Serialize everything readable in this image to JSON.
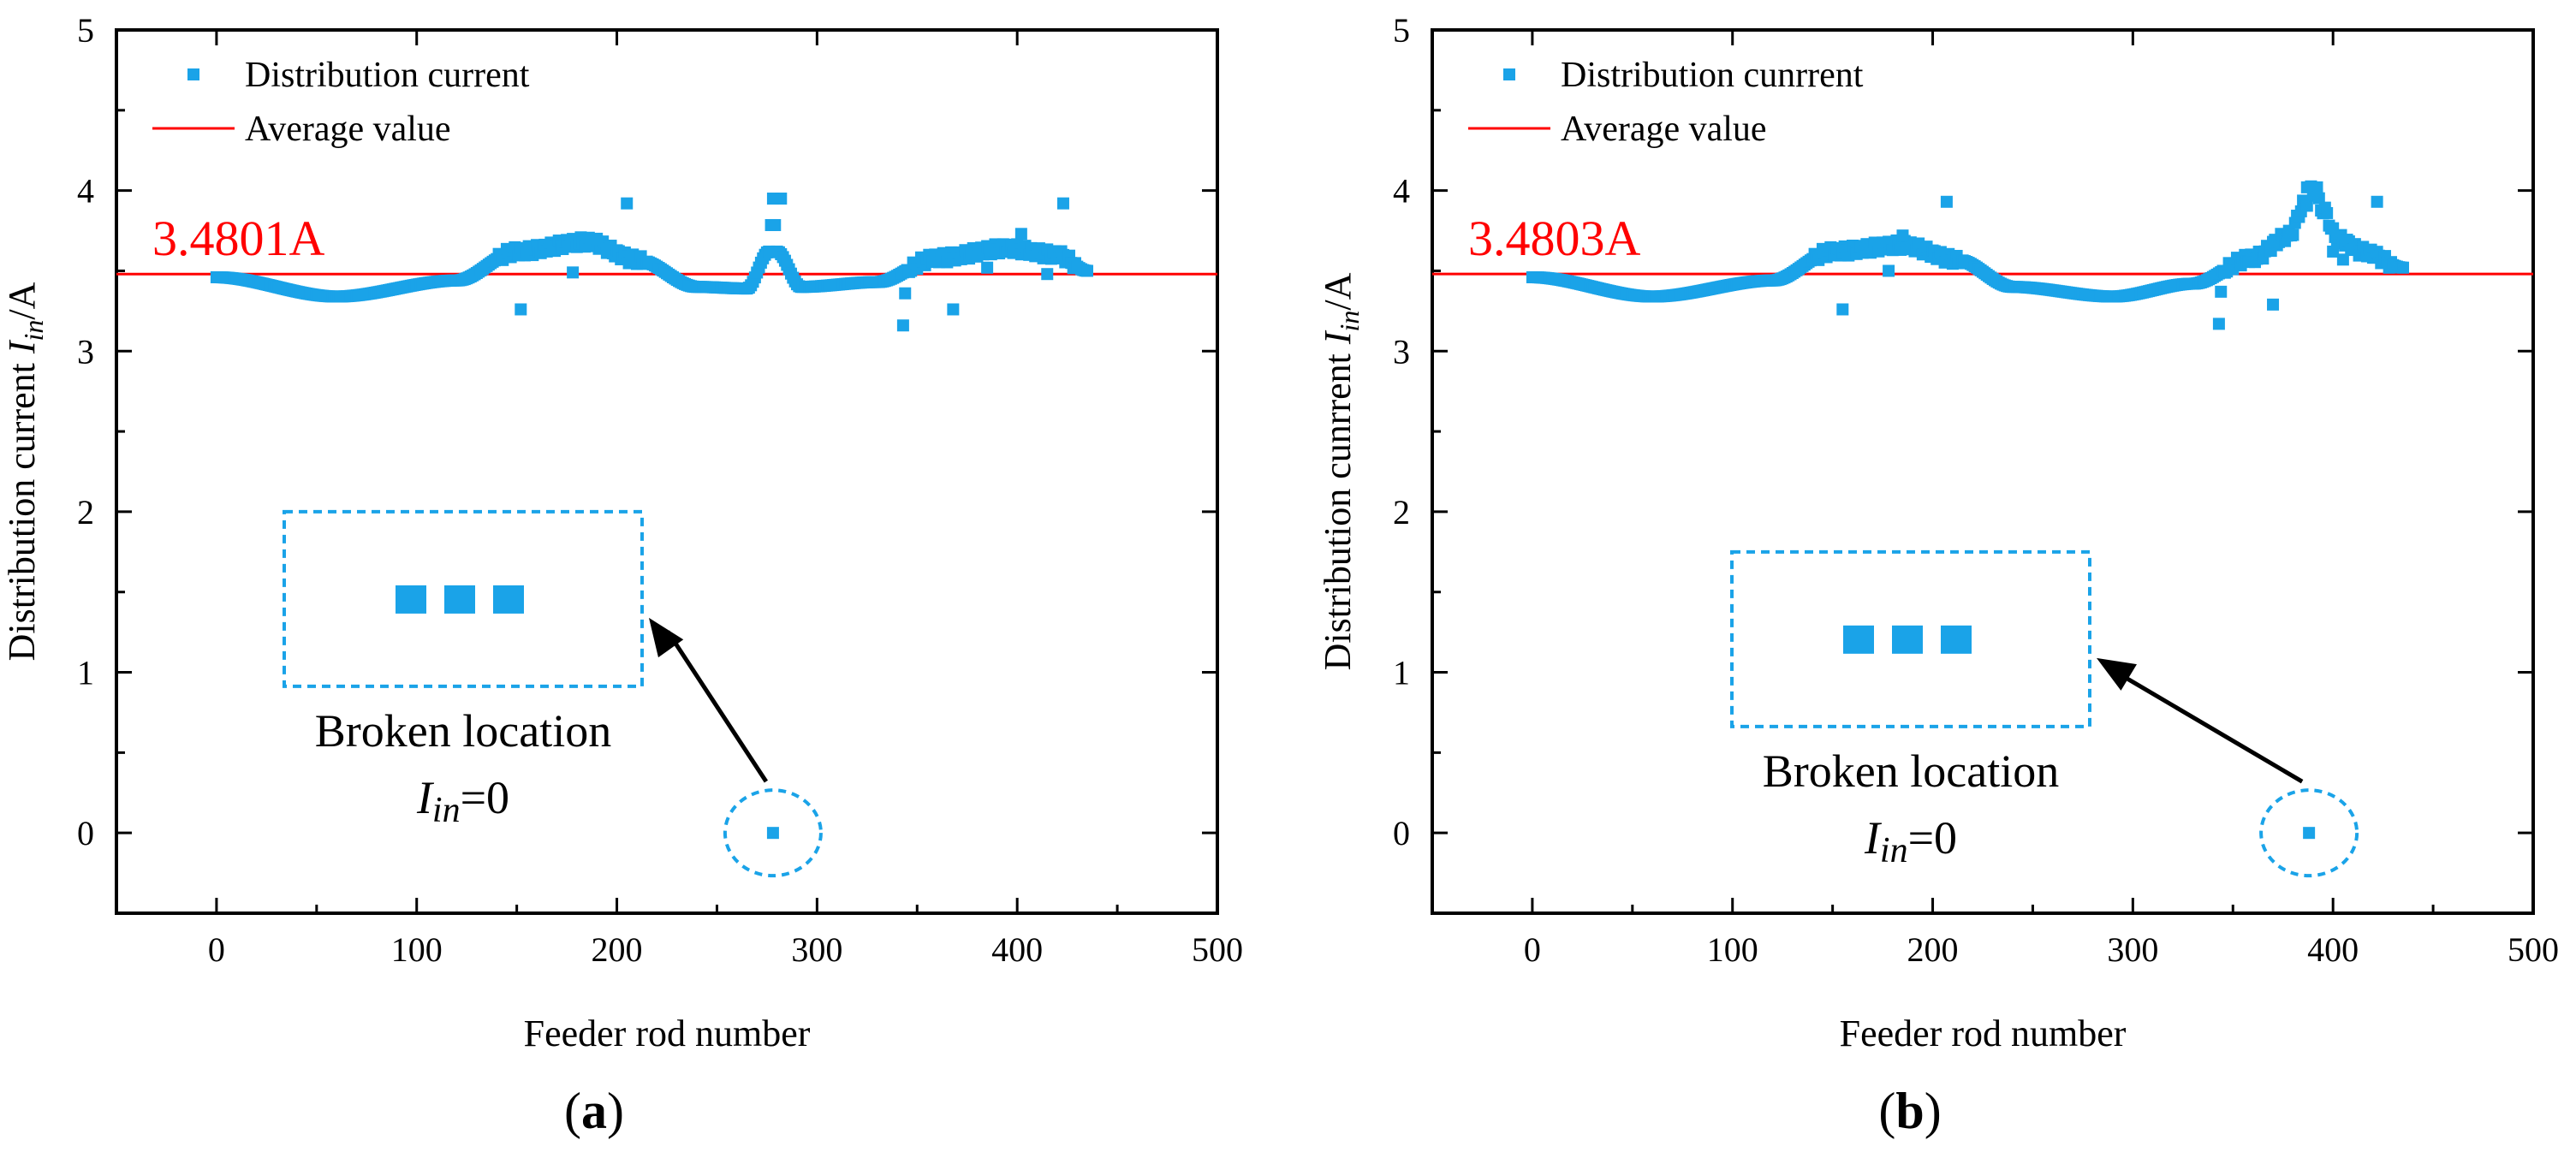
{
  "chart_data": [
    {
      "id": "a",
      "type": "scatter",
      "panel_label": "a",
      "xlabel": "Feeder rod number",
      "ylabel_prefix": "Distribution current ",
      "ylabel_var": "I",
      "ylabel_sub": "in",
      "ylabel_suffix": "/A",
      "xlim": [
        -50,
        500
      ],
      "ylim": [
        -0.5,
        5
      ],
      "xticks": [
        0,
        100,
        200,
        300,
        400,
        500
      ],
      "xtick_labels": [
        "0",
        "100",
        "200",
        "300",
        "400",
        "500"
      ],
      "yticks": [
        0,
        1,
        2,
        3,
        4,
        5
      ],
      "ytick_labels": [
        "0",
        "1",
        "2",
        "3",
        "4",
        "5"
      ],
      "legend": {
        "series_label": "Distribution current",
        "average_label": "Average value",
        "placement": "top-left"
      },
      "average_value": 3.4801,
      "average_label": "3.4801A",
      "broken_location": {
        "x": 278,
        "y": 0
      },
      "broken_text": "Broken location",
      "broken_expr_var": "I",
      "broken_expr_sub": "in",
      "broken_expr_val": "=0",
      "series_color": "#1aa3e8",
      "average_color": "#ff0000",
      "series": [
        {
          "name": "Distribution current",
          "profile": "bowl_then_hump",
          "anchors": [
            [
              0,
              3.46
            ],
            [
              60,
              3.34
            ],
            [
              120,
              3.44
            ],
            [
              150,
              3.62
            ],
            [
              185,
              3.68
            ],
            [
              210,
              3.57
            ],
            [
              240,
              3.4
            ],
            [
              265,
              3.39
            ],
            [
              276,
              3.62
            ],
            [
              278,
              3.95
            ],
            [
              280,
              3.62
            ],
            [
              292,
              3.4
            ],
            [
              330,
              3.43
            ],
            [
              360,
              3.58
            ],
            [
              395,
              3.64
            ],
            [
              420,
              3.6
            ],
            [
              435,
              3.5
            ]
          ]
        }
      ],
      "outliers": [
        {
          "x": 152,
          "y": 3.26
        },
        {
          "x": 178,
          "y": 3.49
        },
        {
          "x": 190,
          "y": 3.7
        },
        {
          "x": 205,
          "y": 3.92
        },
        {
          "x": 278,
          "y": 3.95
        },
        {
          "x": 282,
          "y": 3.95
        },
        {
          "x": 343,
          "y": 3.16
        },
        {
          "x": 344,
          "y": 3.36
        },
        {
          "x": 368,
          "y": 3.26
        },
        {
          "x": 402,
          "y": 3.73
        },
        {
          "x": 423,
          "y": 3.92
        },
        {
          "x": 415,
          "y": 3.48
        },
        {
          "x": 385,
          "y": 3.52
        }
      ]
    },
    {
      "id": "b",
      "type": "scatter",
      "panel_label": "b",
      "xlabel": "Feeder rod number",
      "ylabel_prefix": "Distribution cunrrent ",
      "ylabel_var": "I",
      "ylabel_sub": "in",
      "ylabel_suffix": "/A",
      "xlim": [
        -50,
        500
      ],
      "ylim": [
        -0.5,
        5
      ],
      "xticks": [
        0,
        100,
        200,
        300,
        400,
        500
      ],
      "xtick_labels": [
        "0",
        "100",
        "200",
        "300",
        "400",
        "500"
      ],
      "yticks": [
        0,
        1,
        2,
        3,
        4,
        5
      ],
      "ytick_labels": [
        "0",
        "1",
        "2",
        "3",
        "4",
        "5"
      ],
      "legend": {
        "series_label": "Distribution cunrrent",
        "average_label": "Average value",
        "placement": "top-left"
      },
      "average_value": 3.4803,
      "average_label": "3.4803A",
      "broken_location": {
        "x": 388,
        "y": 0
      },
      "broken_text": "Broken location",
      "broken_expr_var": "I",
      "broken_expr_sub": "in",
      "broken_expr_val": "=0",
      "series_color": "#1aa3e8",
      "average_color": "#ff0000",
      "series": [
        {
          "name": "Distribution cunrrent",
          "profile": "bowl_then_hump",
          "anchors": [
            [
              0,
              3.46
            ],
            [
              60,
              3.34
            ],
            [
              120,
              3.44
            ],
            [
              150,
              3.62
            ],
            [
              185,
              3.66
            ],
            [
              212,
              3.57
            ],
            [
              240,
              3.4
            ],
            [
              290,
              3.34
            ],
            [
              330,
              3.42
            ],
            [
              360,
              3.58
            ],
            [
              378,
              3.72
            ],
            [
              386,
              3.92
            ],
            [
              390,
              4.01
            ],
            [
              395,
              3.88
            ],
            [
              402,
              3.7
            ],
            [
              415,
              3.62
            ],
            [
              435,
              3.52
            ]
          ]
        }
      ],
      "outliers": [
        {
          "x": 155,
          "y": 3.26
        },
        {
          "x": 185,
          "y": 3.72
        },
        {
          "x": 178,
          "y": 3.5
        },
        {
          "x": 207,
          "y": 3.93
        },
        {
          "x": 343,
          "y": 3.17
        },
        {
          "x": 344,
          "y": 3.37
        },
        {
          "x": 370,
          "y": 3.29
        },
        {
          "x": 387,
          "y": 4.02
        },
        {
          "x": 392,
          "y": 4.02
        },
        {
          "x": 400,
          "y": 3.62
        },
        {
          "x": 422,
          "y": 3.93
        },
        {
          "x": 405,
          "y": 3.57
        }
      ]
    }
  ]
}
